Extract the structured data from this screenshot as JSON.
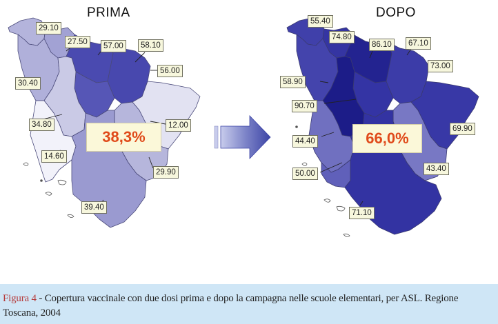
{
  "panels": {
    "before": {
      "title": "PRIMA",
      "total": "38,3%",
      "regions": [
        {
          "id": "nw-top",
          "value": "29.10",
          "fill": "#b4b4dc"
        },
        {
          "id": "n-west",
          "value": "27.50",
          "fill": "#a2a2d4"
        },
        {
          "id": "n-center",
          "value": "57.00",
          "fill": "#4a4ab0"
        },
        {
          "id": "n-east",
          "value": "58.10",
          "fill": "#4848ae"
        },
        {
          "id": "west-coast",
          "value": "30.40",
          "fill": "#b0b0da"
        },
        {
          "id": "east-center",
          "value": "56.00",
          "fill": "#5656b6"
        },
        {
          "id": "west-mid",
          "value": "34.80",
          "fill": "#cacae6"
        },
        {
          "id": "far-east",
          "value": "12.00",
          "fill": "#e2e2f2"
        },
        {
          "id": "west-south",
          "value": "14.60",
          "fill": "#f2f2fa"
        },
        {
          "id": "south-east",
          "value": "29.90",
          "fill": "#b6b6dc"
        },
        {
          "id": "south",
          "value": "39.40",
          "fill": "#9a9ad0"
        }
      ]
    },
    "after": {
      "title": "DOPO",
      "total": "66,0%",
      "regions": [
        {
          "id": "nw-top",
          "value": "55.40",
          "fill": "#4040aa"
        },
        {
          "id": "n-west",
          "value": "74.80",
          "fill": "#3535a2"
        },
        {
          "id": "n-center",
          "value": "86.10",
          "fill": "#232390"
        },
        {
          "id": "n-east",
          "value": "67.10",
          "fill": "#3c3ca8"
        },
        {
          "id": "west-coast",
          "value": "58.90",
          "fill": "#4444ac"
        },
        {
          "id": "east-center",
          "value": "73.00",
          "fill": "#3434a4"
        },
        {
          "id": "west-mid",
          "value": "90.70",
          "fill": "#1c1c88"
        },
        {
          "id": "far-east",
          "value": "69.90",
          "fill": "#3838a6"
        },
        {
          "id": "west-south",
          "value": "44.40",
          "fill": "#7070c0"
        },
        {
          "id": "west-low",
          "value": "50.00",
          "fill": "#6060ba"
        },
        {
          "id": "south-east",
          "value": "43.40",
          "fill": "#7878c4"
        },
        {
          "id": "south",
          "value": "71.10",
          "fill": "#3333a2"
        }
      ]
    }
  },
  "caption": {
    "figure_label": "Figura 4",
    "text": " - Copertura vaccinale con due dosi prima e dopo la campagna nelle scuole elementari, per ASL. Regione Toscana, 2004"
  },
  "colors": {
    "arrow": "#5b63b8",
    "total_text": "#e04a1a",
    "caption_background": "#cfe6f6",
    "label_background": "#f7f7dd"
  }
}
